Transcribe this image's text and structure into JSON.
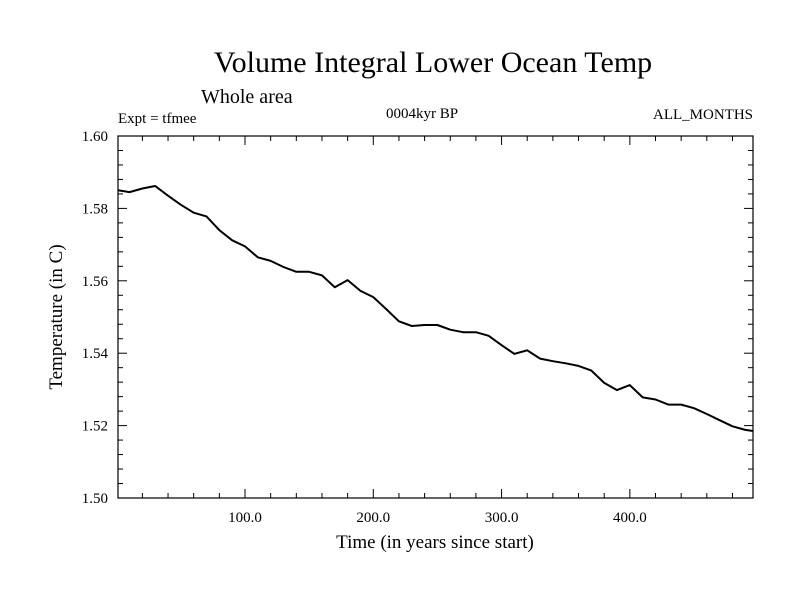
{
  "chart_data": {
    "type": "line",
    "title": "Volume Integral Lower Ocean Temp",
    "subtitle": "Whole area",
    "experiment": "Expt = tfmee",
    "period": "0004kyr BP",
    "months": "ALL_MONTHS",
    "xlabel": "Time (in years since start)",
    "ylabel": "Temperature (in C)",
    "xlim": [
      1,
      496
    ],
    "ylim": [
      1.5,
      1.6
    ],
    "x_ticks": [
      100,
      200,
      300,
      400
    ],
    "x_tick_labels": [
      "100.0",
      "200.0",
      "300.0",
      "400.0"
    ],
    "y_ticks": [
      1.5,
      1.52,
      1.54,
      1.56,
      1.58,
      1.6
    ],
    "y_tick_labels": [
      "1.50",
      "1.52",
      "1.54",
      "1.56",
      "1.58",
      "1.60"
    ],
    "grid": false,
    "series": [
      {
        "x": [
          1,
          10,
          20,
          30,
          40,
          50,
          60,
          70,
          80,
          90,
          100,
          110,
          120,
          130,
          140,
          150,
          160,
          170,
          180,
          190,
          200,
          210,
          220,
          230,
          240,
          250,
          260,
          270,
          280,
          290,
          300,
          310,
          320,
          330,
          340,
          350,
          360,
          370,
          380,
          390,
          400,
          410,
          420,
          430,
          440,
          450,
          460,
          470,
          480,
          490,
          496
        ],
        "y": [
          1.585,
          1.5845,
          1.5855,
          1.5862,
          1.5835,
          1.581,
          1.5788,
          1.5778,
          1.574,
          1.5712,
          1.5695,
          1.5665,
          1.5655,
          1.5638,
          1.5625,
          1.5625,
          1.5615,
          1.5582,
          1.5602,
          1.5572,
          1.5555,
          1.5522,
          1.5488,
          1.5475,
          1.5478,
          1.5478,
          1.5465,
          1.5458,
          1.5458,
          1.5448,
          1.5422,
          1.5398,
          1.5408,
          1.5385,
          1.5378,
          1.5372,
          1.5365,
          1.5352,
          1.5318,
          1.5298,
          1.5312,
          1.5278,
          1.5272,
          1.5258,
          1.5258,
          1.5248,
          1.5232,
          1.5215,
          1.5198,
          1.5188,
          1.5185
        ]
      }
    ]
  }
}
